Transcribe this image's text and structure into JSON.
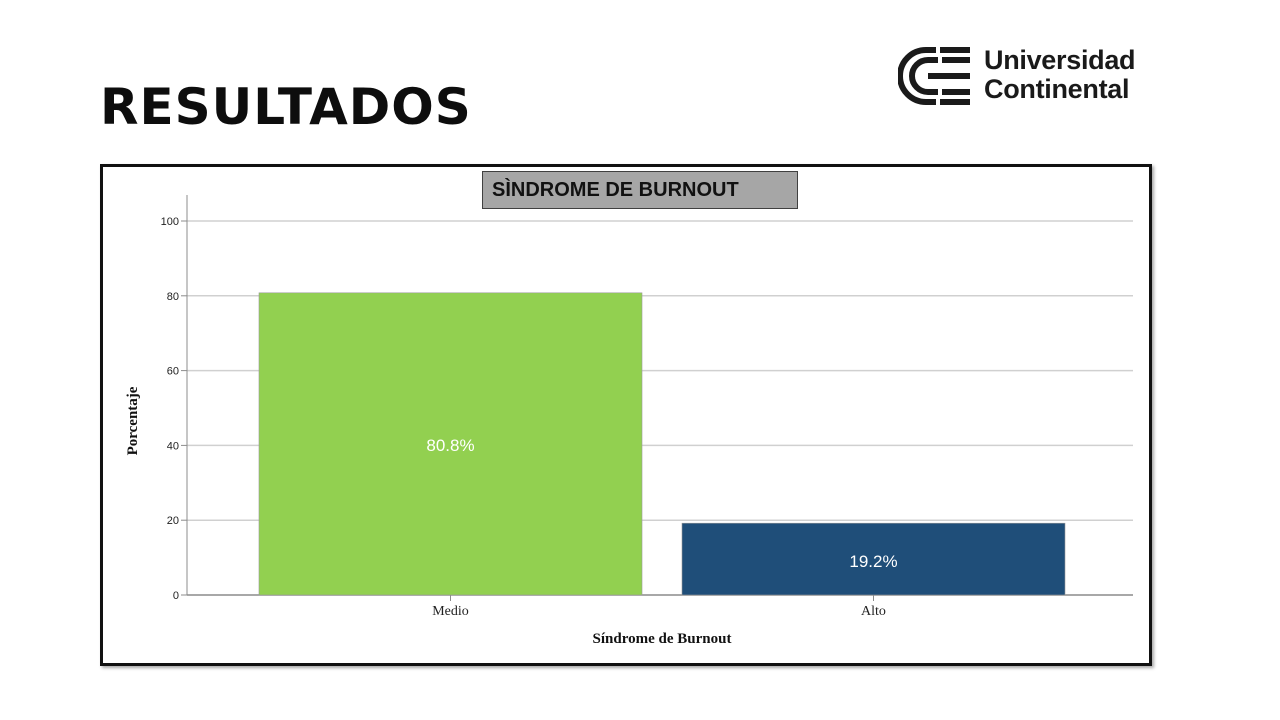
{
  "slide": {
    "title": "RESULTADOS"
  },
  "logo": {
    "line1": "Universidad",
    "line2": "Continental"
  },
  "chart_heading": "SÌNDROME DE BURNOUT",
  "colors": {
    "medio": "#92d050",
    "alto": "#1f4e79",
    "grid": "#d0d0d0",
    "axis": "#8c8c8c"
  },
  "chart_data": {
    "type": "bar",
    "categories": [
      "Medio",
      "Alto"
    ],
    "values": [
      80.8,
      19.2
    ],
    "data_labels": [
      "80.8%",
      "19.2%"
    ],
    "title": "SÌNDROME DE BURNOUT",
    "xlabel": "Síndrome de Burnout",
    "ylabel": "Porcentaje",
    "ylim": [
      0,
      100
    ],
    "yticks": [
      0,
      20,
      40,
      60,
      80,
      100
    ],
    "grid": true
  }
}
